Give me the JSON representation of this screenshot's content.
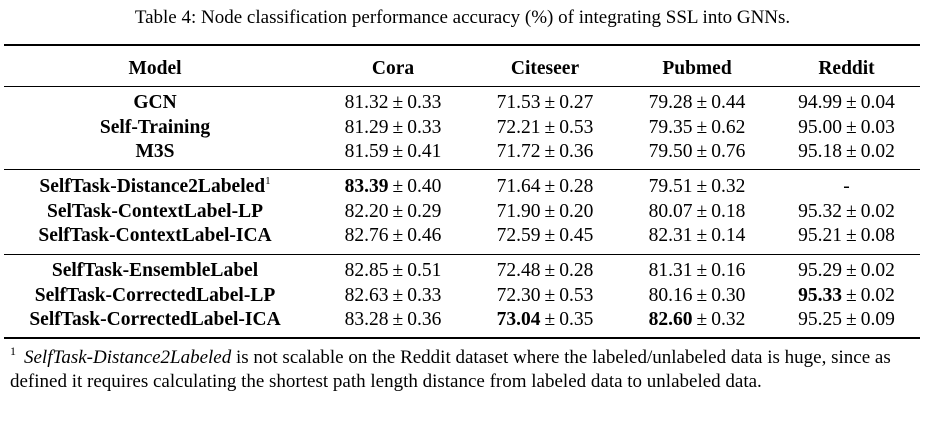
{
  "caption": "Table 4: Node classification performance accuracy (%) of integrating SSL into GNNs.",
  "columns": [
    "Model",
    "Cora",
    "Citeseer",
    "Pubmed",
    "Reddit"
  ],
  "pm": "±",
  "groups": [
    [
      {
        "model": "GCN",
        "sup": "",
        "cells": [
          {
            "v": "81.32",
            "e": "0.33",
            "bold": false
          },
          {
            "v": "71.53",
            "e": "0.27",
            "bold": false
          },
          {
            "v": "79.28",
            "e": "0.44",
            "bold": false
          },
          {
            "v": "94.99",
            "e": "0.04",
            "bold": false
          }
        ]
      },
      {
        "model": "Self-Training",
        "sup": "",
        "cells": [
          {
            "v": "81.29",
            "e": "0.33",
            "bold": false
          },
          {
            "v": "72.21",
            "e": "0.53",
            "bold": false
          },
          {
            "v": "79.35",
            "e": "0.62",
            "bold": false
          },
          {
            "v": "95.00",
            "e": "0.03",
            "bold": false
          }
        ]
      },
      {
        "model": "M3S",
        "sup": "",
        "cells": [
          {
            "v": "81.59",
            "e": "0.41",
            "bold": false
          },
          {
            "v": "71.72",
            "e": "0.36",
            "bold": false
          },
          {
            "v": "79.50",
            "e": "0.76",
            "bold": false
          },
          {
            "v": "95.18",
            "e": "0.02",
            "bold": false
          }
        ]
      }
    ],
    [
      {
        "model": "SelfTask-Distance2Labeled",
        "sup": "1",
        "cells": [
          {
            "v": "83.39",
            "e": "0.40",
            "bold": true
          },
          {
            "v": "71.64",
            "e": "0.28",
            "bold": false
          },
          {
            "v": "79.51",
            "e": "0.32",
            "bold": false
          },
          {
            "dash": "-"
          }
        ]
      },
      {
        "model": "SelTask-ContextLabel-LP",
        "sup": "",
        "cells": [
          {
            "v": "82.20",
            "e": "0.29",
            "bold": false
          },
          {
            "v": "71.90",
            "e": "0.20",
            "bold": false
          },
          {
            "v": "80.07",
            "e": "0.18",
            "bold": false
          },
          {
            "v": "95.32",
            "e": "0.02",
            "bold": false
          }
        ]
      },
      {
        "model": "SelfTask-ContextLabel-ICA",
        "sup": "",
        "cells": [
          {
            "v": "82.76",
            "e": "0.46",
            "bold": false
          },
          {
            "v": "72.59",
            "e": "0.45",
            "bold": false
          },
          {
            "v": "82.31",
            "e": "0.14",
            "bold": false
          },
          {
            "v": "95.21",
            "e": "0.08",
            "bold": false
          }
        ]
      }
    ],
    [
      {
        "model": "SelfTask-EnsembleLabel",
        "sup": "",
        "cells": [
          {
            "v": "82.85",
            "e": "0.51",
            "bold": false
          },
          {
            "v": "72.48",
            "e": "0.28",
            "bold": false
          },
          {
            "v": "81.31",
            "e": "0.16",
            "bold": false
          },
          {
            "v": "95.29",
            "e": "0.02",
            "bold": false
          }
        ]
      },
      {
        "model": "SelfTask-CorrectedLabel-LP",
        "sup": "",
        "cells": [
          {
            "v": "82.63",
            "e": "0.33",
            "bold": false
          },
          {
            "v": "72.30",
            "e": "0.53",
            "bold": false
          },
          {
            "v": "80.16",
            "e": "0.30",
            "bold": false
          },
          {
            "v": "95.33",
            "e": "0.02",
            "bold": true
          }
        ]
      },
      {
        "model": "SelfTask-CorrectedLabel-ICA",
        "sup": "",
        "cells": [
          {
            "v": "83.28",
            "e": "0.36",
            "bold": false
          },
          {
            "v": "73.04",
            "e": "0.35",
            "bold": true
          },
          {
            "v": "82.60",
            "e": "0.32",
            "bold": true
          },
          {
            "v": "95.25",
            "e": "0.09",
            "bold": false
          }
        ]
      }
    ]
  ],
  "footnote": {
    "mark": "1",
    "name": "SelfTask-Distance2Labeled",
    "text": " is not scalable on the Reddit dataset where the labeled/unlabeled data is huge, since as defined it requires calculating the shortest path length distance from labeled data to unlabeled data."
  }
}
